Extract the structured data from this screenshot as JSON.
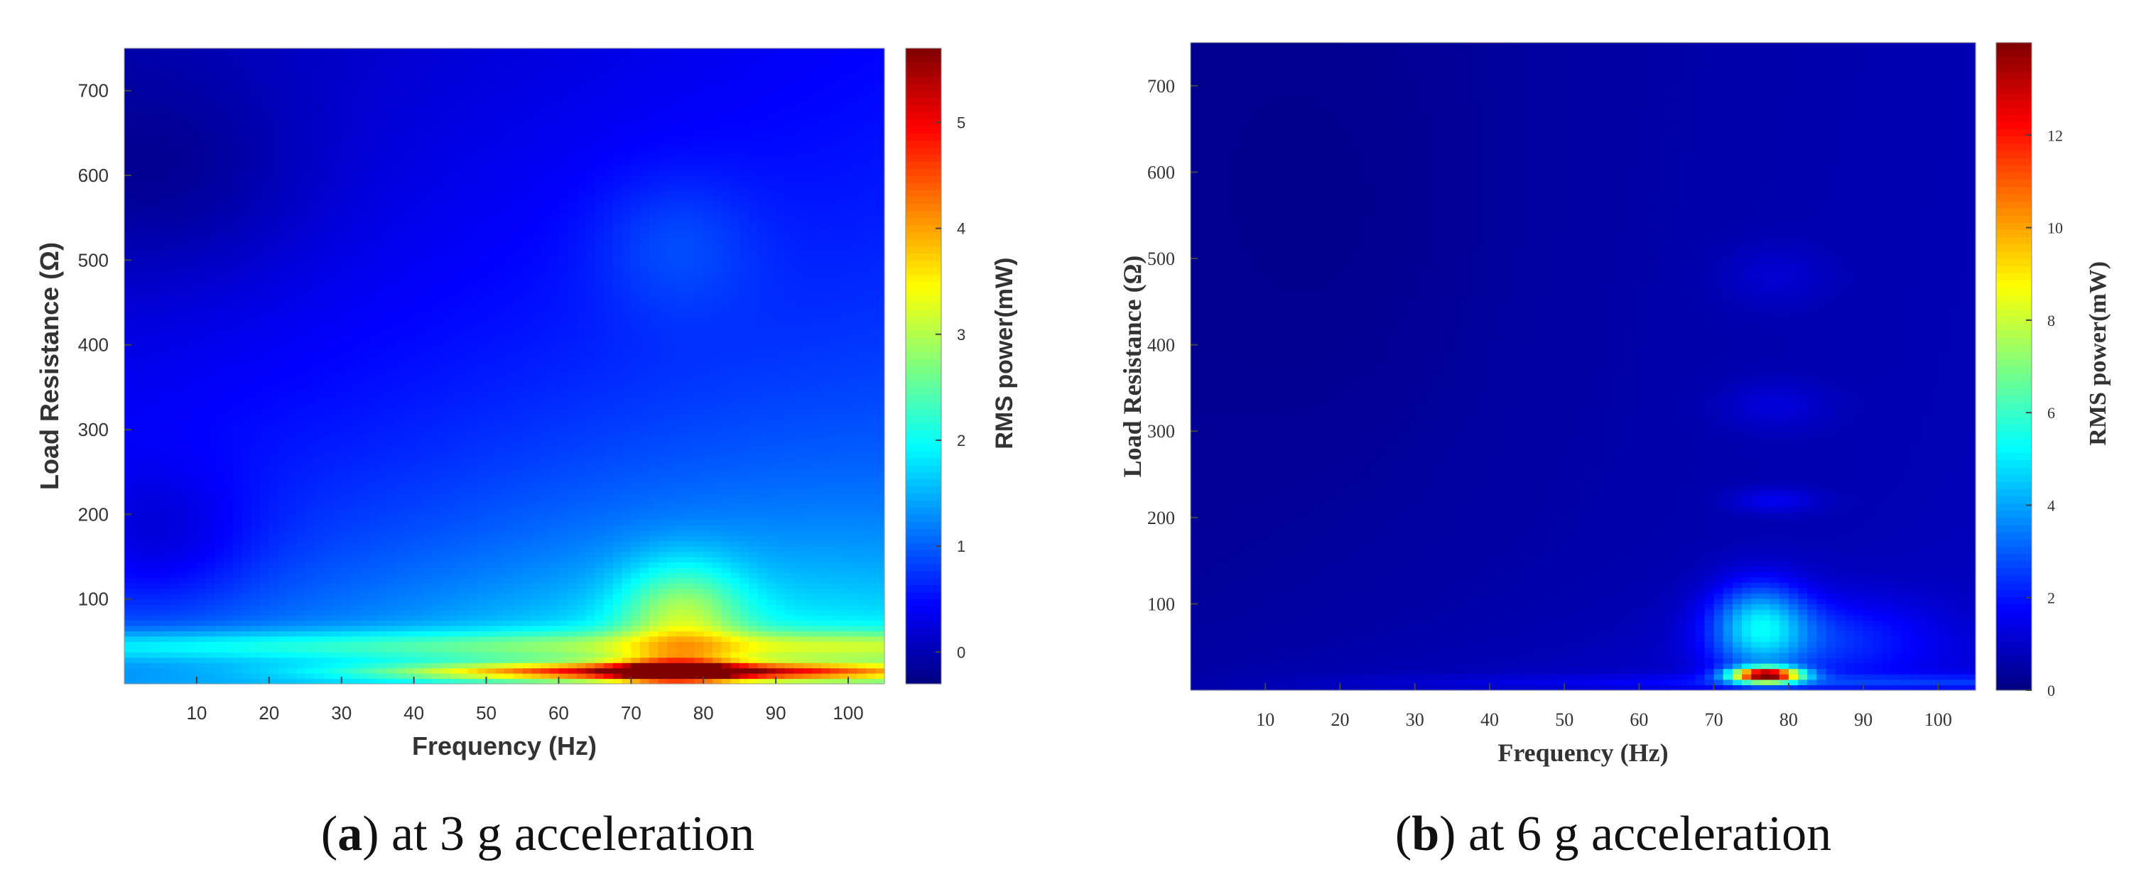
{
  "chart_data": [
    {
      "type": "heatmap",
      "panel_label": "a",
      "caption": "at 3 g acceleration",
      "xlabel": "Frequency (Hz)",
      "ylabel": "Load Resistance (Ω)",
      "colorbar_label": "RMS power(mW)",
      "xlim": [
        0,
        105
      ],
      "ylim": [
        0,
        750
      ],
      "x_ticks": [
        10,
        20,
        30,
        40,
        50,
        60,
        70,
        80,
        90,
        100
      ],
      "y_ticks": [
        100,
        200,
        300,
        400,
        500,
        600,
        700
      ],
      "colorbar_range": [
        -0.3,
        5.7
      ],
      "colorbar_ticks": [
        0,
        1,
        2,
        3,
        4,
        5
      ],
      "peak": {
        "frequency": 77,
        "load_resistance": 15,
        "value": 5.6
      },
      "field_points": [
        {
          "frequency": 8,
          "load_resistance": 600,
          "value": 0.15
        },
        {
          "frequency": 8,
          "load_resistance": 170,
          "value": 0.1
        },
        {
          "frequency": 75,
          "load_resistance": 520,
          "value": 0.9
        },
        {
          "frequency": 90,
          "load_resistance": 300,
          "value": 1.3
        },
        {
          "frequency": 80,
          "load_resistance": 150,
          "value": 2.2
        },
        {
          "frequency": 78,
          "load_resistance": 80,
          "value": 3.0
        },
        {
          "frequency": 20,
          "load_resistance": 40,
          "value": 1.7
        },
        {
          "frequency": 50,
          "load_resistance": 15,
          "value": 3.5
        },
        {
          "frequency": 77,
          "load_resistance": 15,
          "value": 5.6
        }
      ]
    },
    {
      "type": "heatmap",
      "panel_label": "b",
      "caption": "at 6 g acceleration",
      "xlabel": "Frequency (Hz)",
      "ylabel": "Load Resistance (Ω)",
      "colorbar_label": "RMS power(mW)",
      "xlim": [
        0,
        105
      ],
      "ylim": [
        0,
        750
      ],
      "x_ticks": [
        10,
        20,
        30,
        40,
        50,
        60,
        70,
        80,
        90,
        100
      ],
      "y_ticks": [
        100,
        200,
        300,
        400,
        500,
        600,
        700
      ],
      "colorbar_range": [
        0,
        14
      ],
      "colorbar_ticks": [
        0,
        2,
        4,
        6,
        8,
        10,
        12
      ],
      "peak": {
        "frequency": 77,
        "load_resistance": 18,
        "value": 13.8
      },
      "field_points": [
        {
          "frequency": 20,
          "load_resistance": 500,
          "value": 0.3
        },
        {
          "frequency": 75,
          "load_resistance": 500,
          "value": 1.0
        },
        {
          "frequency": 77,
          "load_resistance": 220,
          "value": 2.6
        },
        {
          "frequency": 76,
          "load_resistance": 80,
          "value": 4.5
        },
        {
          "frequency": 40,
          "load_resistance": 20,
          "value": 1.5
        },
        {
          "frequency": 77,
          "load_resistance": 18,
          "value": 13.8
        }
      ]
    }
  ]
}
